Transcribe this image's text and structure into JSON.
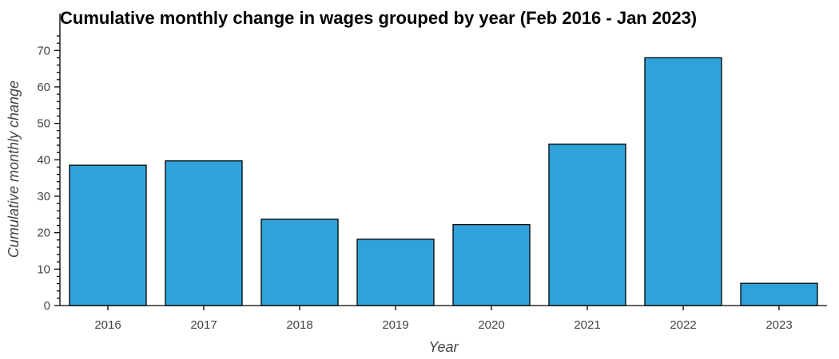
{
  "chart_data": {
    "type": "bar",
    "title": "Cumulative monthly change in wages grouped by year (Feb 2016 - Jan 2023)",
    "xlabel": "Year",
    "ylabel": "Cumulative monthly change",
    "categories": [
      "2016",
      "2017",
      "2018",
      "2019",
      "2020",
      "2021",
      "2022",
      "2023"
    ],
    "values": [
      38.5,
      39.7,
      23.7,
      18.2,
      22.2,
      44.3,
      68.0,
      6.1
    ],
    "ylim": [
      0,
      74
    ],
    "yticks": [
      0,
      10,
      20,
      30,
      40,
      50,
      60,
      70
    ],
    "bar_color": "#30a2da",
    "grid": false,
    "legend": "none"
  }
}
